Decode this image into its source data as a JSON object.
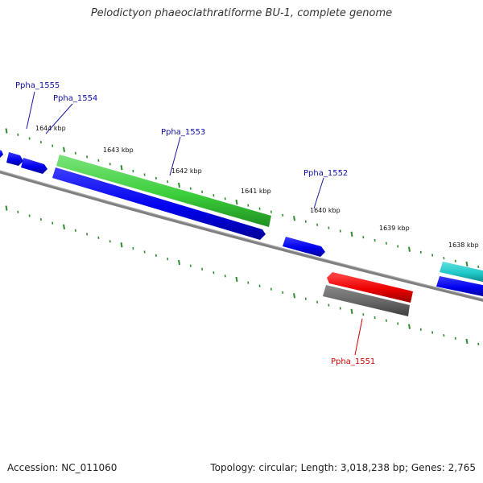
{
  "title": "Pelodictyon phaeoclathratiforme BU-1, complete genome",
  "footer": {
    "accession": "Accession: NC_011060",
    "summary": "Topology: circular; Length: 3,018,238 bp; Genes: 2,765"
  },
  "colors": {
    "background": "#ffffff",
    "backbone": "#808080",
    "tick": "#2e8b2e",
    "forward_gene": "#0000ee",
    "reverse_gene_label": "#dd0000",
    "rna_gene": "#2ecc2e",
    "teal_gene": "#20c8c8",
    "pseudo_gene": "#666666"
  },
  "scale_labels": [
    "1644 kbp",
    "1643 kbp",
    "1642 kbp",
    "1641 kbp",
    "1640 kbp",
    "1639 kbp",
    "1638 kbp"
  ],
  "gene_labels": [
    {
      "name": "Ppha_1555",
      "strand": "forward"
    },
    {
      "name": "Ppha_1554",
      "strand": "forward"
    },
    {
      "name": "Ppha_1553",
      "strand": "forward"
    },
    {
      "name": "Ppha_1552",
      "strand": "forward"
    },
    {
      "name": "Ppha_1551",
      "strand": "reverse"
    }
  ]
}
